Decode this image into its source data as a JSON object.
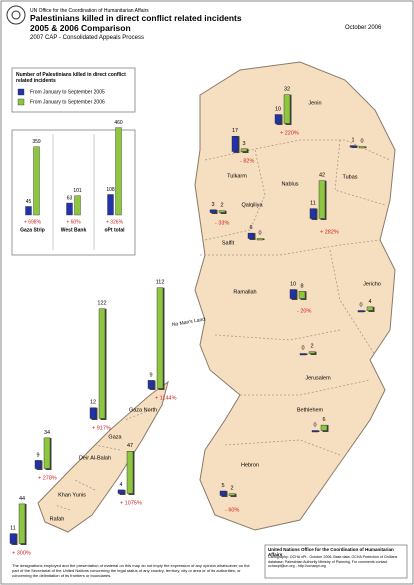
{
  "header": {
    "org": "UN Office for the Coordination of Humanitarian Affairs",
    "title": "Palestinians killed in direct conflict related incidents",
    "subtitle": "2005 & 2006 Comparison",
    "date": "October 2006",
    "tagline": "2007 CAP - Consolidated Appeals Process"
  },
  "chart_data": {
    "type": "bar",
    "legend_title": "Number of Palestinians killed in direct conflict related incidents",
    "categories": [
      "Gaza Strip",
      "West Bank",
      "oPt total"
    ],
    "series": [
      {
        "name": "From January to September 2005",
        "color": "#2233aa",
        "values": [
          45,
          63,
          108
        ]
      },
      {
        "name": "From January to September 2006",
        "color": "#8dc63f",
        "values": [
          359,
          101,
          460
        ]
      }
    ],
    "change_labels": [
      "+ 698%",
      "+ 60%",
      "+ 326%"
    ]
  },
  "map": {
    "districts": [
      {
        "name": "Jenin",
        "values": [
          10,
          32
        ],
        "change": "+ 220%"
      },
      {
        "name": "Tulkarm",
        "values": [
          17,
          3
        ],
        "change": "- 82%"
      },
      {
        "name": "Tubas",
        "values": [
          1,
          0
        ]
      },
      {
        "name": "Nablus",
        "values": [
          11,
          42
        ],
        "change": "+ 282%"
      },
      {
        "name": "Qalqiliya",
        "values": [
          3,
          2
        ],
        "change": "- 33%"
      },
      {
        "name": "Salfit",
        "values": [
          6,
          0
        ]
      },
      {
        "name": "Jericho",
        "values": [
          0,
          4
        ]
      },
      {
        "name": "Ramallah",
        "values": [
          10,
          8
        ],
        "change": "- 20%"
      },
      {
        "name": "Jerusalem",
        "values": [
          0,
          2
        ]
      },
      {
        "name": "Bethlehem",
        "values": [
          0,
          6
        ]
      },
      {
        "name": "Hebron",
        "values": [
          5,
          2
        ],
        "change": "- 60%"
      },
      {
        "name": "Gaza North",
        "values": [
          9,
          112
        ],
        "change": "+ 1144%"
      },
      {
        "name": "Gaza",
        "values": [
          12,
          122
        ],
        "change": "+ 917%"
      },
      {
        "name": "Deir Al-Balah",
        "values": [
          9,
          34
        ],
        "change": "+ 278%"
      },
      {
        "name": "Khan Yunis",
        "values": [
          4,
          47
        ],
        "change": "+ 1075%"
      },
      {
        "name": "Rafah",
        "values": [
          11,
          44
        ],
        "change": "+ 300%"
      }
    ],
    "no_mans_land": "No Man's Land"
  },
  "footer": {
    "disclaimer": "The designations employed and the presentation of material on this map do not imply the expression of any opinion whatsoever on the part of the Secretariat of the United Nations concerning the legal status of any country, territory, city or area or of its authorities, or concerning the delimitation of its frontiers or boundaries.",
    "credit_title": "United Nations Office for the Coordination of Humanitarian Affairs",
    "credit_text": "Cartography: OCHA oPt - October 2006. Base data: OCHA Protection of Civilians database; Palestinian Authority Ministry of Planning. For comments contact ochaopt@un.org - http://ochaopt.org"
  }
}
